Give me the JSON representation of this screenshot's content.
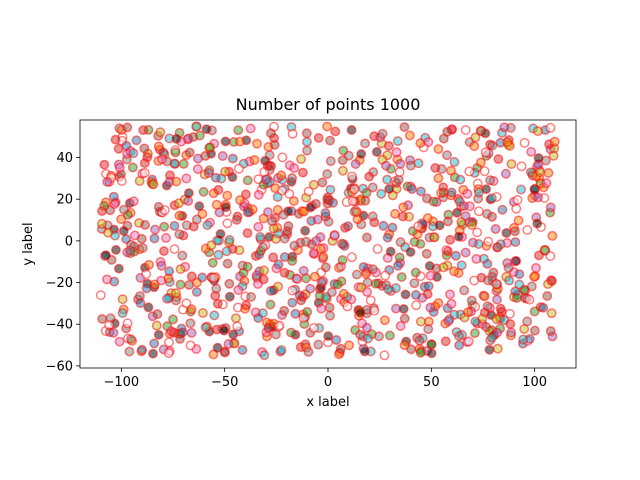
{
  "chart_data": {
    "type": "scatter",
    "title": "Number of points 1000",
    "xlabel": "x label",
    "ylabel": "y label",
    "xlim": [
      -120,
      120
    ],
    "ylim": [
      -61,
      58
    ],
    "x_ticks": [
      -100,
      -50,
      0,
      50,
      100
    ],
    "y_ticks": [
      -60,
      -40,
      -20,
      0,
      20,
      40
    ],
    "x_tick_labels": [
      "−100",
      "−50",
      "0",
      "50",
      "100"
    ],
    "y_tick_labels": [
      "−60",
      "−40",
      "−20",
      "0",
      "20",
      "40"
    ],
    "point_count": 1000,
    "x_range_of_points": [
      -110,
      110
    ],
    "y_range_of_points": [
      -55,
      55
    ],
    "grid": false,
    "legend": "none",
    "colors": {
      "edge": "#ff0000",
      "face_palette": [
        "#1f77b4",
        "#ff7f0e",
        "#2ca02c",
        "#d62728",
        "#9467bd",
        "#8c564b",
        "#e377c2",
        "#7f7f7f",
        "#bcbd22",
        "#17becf",
        "#ffffff",
        "#000000"
      ],
      "alpha": 0.5
    }
  }
}
